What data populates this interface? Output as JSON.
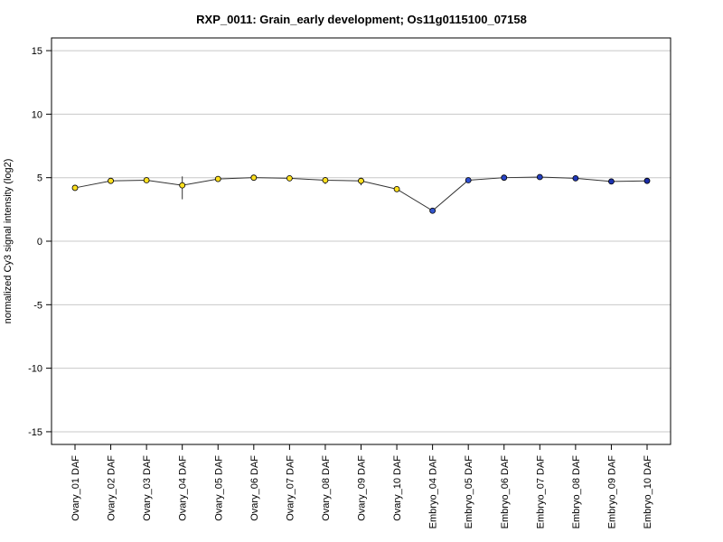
{
  "chart_data": {
    "type": "line",
    "title": "RXP_0011: Grain_early development; Os11g0115100_07158",
    "xlabel": "",
    "ylabel": "normalized Cy3 signal intensity (log2)",
    "ylim": [
      -16,
      16
    ],
    "yticks": [
      -15,
      -10,
      -5,
      0,
      5,
      10,
      15
    ],
    "grid": true,
    "legend": "none",
    "categories": [
      "Ovary_01 DAF",
      "Ovary_02 DAF",
      "Ovary_03 DAF",
      "Ovary_04 DAF",
      "Ovary_05 DAF",
      "Ovary_06 DAF",
      "Ovary_07 DAF",
      "Ovary_08 DAF",
      "Ovary_09 DAF",
      "Ovary_10 DAF",
      "Embryo_04 DAF",
      "Embryo_05 DAF",
      "Embryo_06 DAF",
      "Embryo_07 DAF",
      "Embryo_08 DAF",
      "Embryo_09 DAF",
      "Embryo_10 DAF"
    ],
    "values": [
      4.2,
      4.75,
      4.8,
      4.4,
      4.9,
      5.0,
      4.95,
      4.8,
      4.75,
      4.1,
      2.4,
      4.8,
      5.0,
      5.05,
      4.95,
      4.7,
      4.75
    ],
    "error_low": [
      4.15,
      4.7,
      4.75,
      3.3,
      4.85,
      4.95,
      4.9,
      4.5,
      4.4,
      3.95,
      2.3,
      4.75,
      4.95,
      5.0,
      4.9,
      4.65,
      4.7
    ],
    "error_high": [
      4.25,
      4.8,
      4.85,
      5.1,
      4.95,
      5.05,
      5.0,
      5.05,
      5.0,
      4.25,
      2.5,
      4.85,
      5.05,
      5.1,
      5.0,
      4.75,
      4.8
    ],
    "point_colors": [
      "#ffe020",
      "#ffe020",
      "#ffe020",
      "#ffe020",
      "#ffe020",
      "#ffe020",
      "#ffe020",
      "#ffe020",
      "#ffe020",
      "#ffe020",
      "#3355cc",
      "#2f4fd0",
      "#2a45c8",
      "#2540c0",
      "#2038b8",
      "#1c32b0",
      "#1a2ca8"
    ]
  }
}
